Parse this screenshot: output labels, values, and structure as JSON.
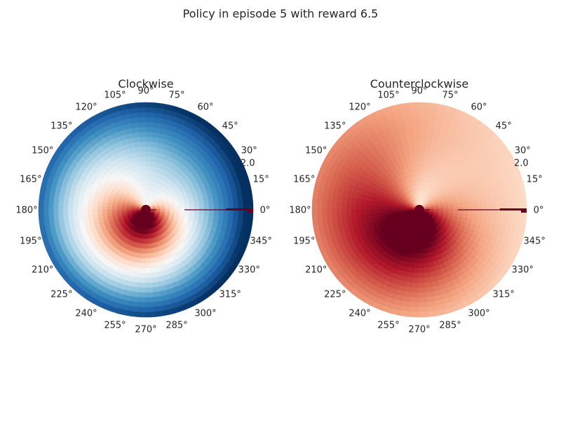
{
  "figure_title": "Policy in episode 5 with reward 6.5",
  "colormap": "RdBu",
  "chart_data": [
    {
      "type": "heatmap",
      "projection": "polar",
      "title": "Clockwise",
      "theta_tick_labels": [
        "0°",
        "15°",
        "30°",
        "45°",
        "60°",
        "75°",
        "90°",
        "105°",
        "120°",
        "135°",
        "150°",
        "165°",
        "180°",
        "195°",
        "210°",
        "225°",
        "240°",
        "255°",
        "270°",
        "285°",
        "300°",
        "315°",
        "330°",
        "345°"
      ],
      "radial_tick_label": "2.0",
      "radial_tick_angle_deg": 22.5,
      "rlim": [
        0,
        2.1
      ],
      "value_range": [
        -1,
        1
      ],
      "pattern": {
        "center": -0.8,
        "sweep": 0.75,
        "edge": 0.95,
        "spiral": 0.6
      },
      "marker": {
        "r": 2.1,
        "theta_deg": 0,
        "color": "#67001f"
      }
    },
    {
      "type": "heatmap",
      "projection": "polar",
      "title": "Counterclockwise",
      "theta_tick_labels": [
        "0°",
        "15°",
        "30°",
        "45°",
        "60°",
        "75°",
        "90°",
        "105°",
        "120°",
        "135°",
        "150°",
        "165°",
        "180°",
        "195°",
        "210°",
        "225°",
        "240°",
        "255°",
        "270°",
        "285°",
        "300°",
        "315°",
        "330°",
        "345°"
      ],
      "radial_tick_label": "2.0",
      "radial_tick_angle_deg": 22.5,
      "rlim": [
        0,
        2.1
      ],
      "value_range": [
        -1,
        1
      ],
      "pattern": {
        "center": -0.85,
        "sweep": 0.75,
        "edge": -0.35,
        "spiral": 0.6
      },
      "marker": {
        "r": 2.1,
        "theta_deg": 0,
        "color": "#67001f"
      }
    }
  ]
}
